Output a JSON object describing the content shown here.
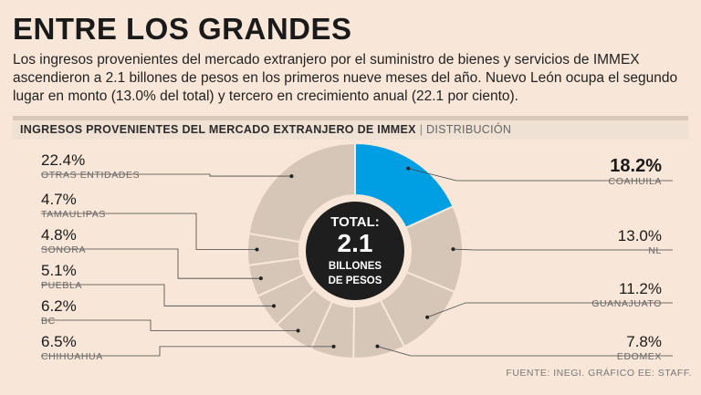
{
  "header": {
    "title": "ENTRE LOS GRANDES",
    "description": "Los ingresos provenientes del mercado extranjero por el suministro de bienes y servicios de IMMEX ascendieron a 2.1 billones de pesos en los primeros nueve meses del año. Nuevo León ocupa el segundo lugar en monto (13.0% del total) y tercero en crecimiento anual (22.1 por ciento).",
    "subtitle": "INGRESOS PROVENIENTES DEL MERCADO EXTRANJERO DE IMMEX",
    "separator": "|",
    "subtitle_tag": "DISTRIBUCIÓN"
  },
  "center": {
    "line1": "TOTAL:",
    "line2": "2.1",
    "line3": "BILLONES",
    "line4": "DE PESOS"
  },
  "source": "FUENTE: INEGI. GRÁFICO EE: STAFF.",
  "colors": {
    "background": "#f8e7d8",
    "highlight": "#009fe3",
    "segment": "#d6c6b7",
    "segment_stroke": "#f8e7d8",
    "center_fill": "#1e1e1e",
    "leader": "#444444"
  },
  "chart_data": {
    "type": "pie",
    "title": "INGRESOS PROVENIENTES DEL MERCADO EXTRANJERO DE IMMEX",
    "unit": "%",
    "highlight": "Coahuila",
    "slices": [
      {
        "label": "COAHUILA",
        "value": 18.2,
        "display": "18.2%",
        "side": "right"
      },
      {
        "label": "NL",
        "value": 13.0,
        "display": "13.0%",
        "side": "right"
      },
      {
        "label": "GUANAJUATO",
        "value": 11.2,
        "display": "11.2%",
        "side": "right"
      },
      {
        "label": "EDOMEX",
        "value": 7.8,
        "display": "7.8%",
        "side": "right"
      },
      {
        "label": "CHIHUAHUA",
        "value": 6.5,
        "display": "6.5%",
        "side": "left"
      },
      {
        "label": "BC",
        "value": 6.2,
        "display": "6.2%",
        "side": "left"
      },
      {
        "label": "PUEBLA",
        "value": 5.1,
        "display": "5.1%",
        "side": "left"
      },
      {
        "label": "SONORA",
        "value": 4.8,
        "display": "4.8%",
        "side": "left"
      },
      {
        "label": "TAMAULIPAS",
        "value": 4.7,
        "display": "4.7%",
        "side": "left"
      },
      {
        "label": "OTRAS ENTIDADES",
        "value": 22.4,
        "display": "22.4%",
        "side": "left"
      }
    ]
  }
}
